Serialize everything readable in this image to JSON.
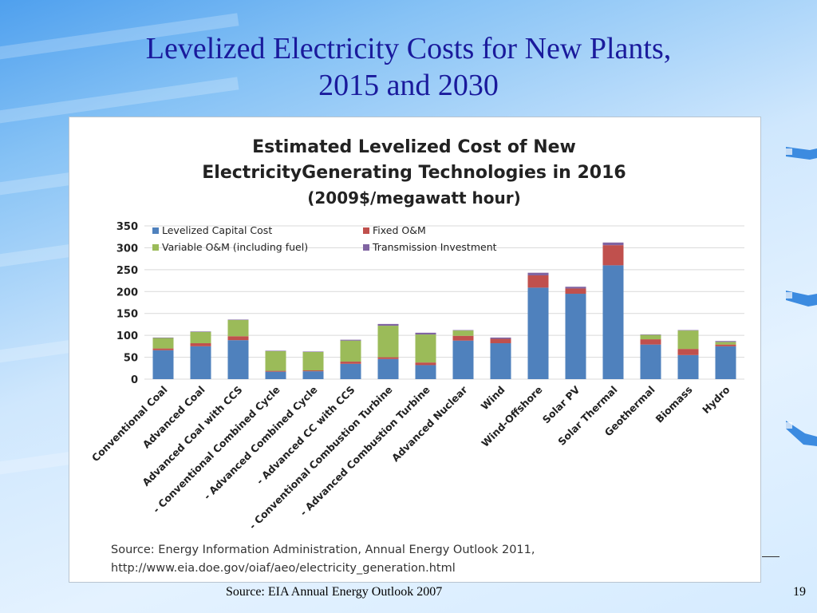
{
  "slide": {
    "title_line1": "Levelized Electricity Costs for New Plants,",
    "title_line2": "2015 and 2030",
    "footer_source": "Source: EIA Annual Energy Outlook 2007",
    "page_number": "19"
  },
  "colors": {
    "capital": "#4f81bd",
    "fixed_om": "#c0504d",
    "variable_om": "#9bbb59",
    "transmission": "#8064a2",
    "title_blue": "#1a1a9c"
  },
  "chart_data": {
    "type": "bar",
    "stacked": true,
    "title_line1": "Estimated Levelized Cost of New",
    "title_line2": "ElectricityGenerating Technologies in 2016",
    "subtitle": "(2009$/megawatt hour)",
    "ylim": [
      0,
      350
    ],
    "yticks": [
      "0",
      "50",
      "100",
      "150",
      "200",
      "250",
      "300",
      "350"
    ],
    "grid": true,
    "legend_position": "top-left",
    "categories": [
      "Conventional Coal",
      "Advanced Coal",
      "Advanced Coal with CCS",
      "- Conventional Combined Cycle",
      "- Advanced Combined Cycle",
      "- Advanced CC with CCS",
      "- Conventional Combustion Turbine",
      "- Advanced Combustion Turbine",
      "Advanced Nuclear",
      "Wind",
      "Wind-Offshore",
      "Solar PV",
      "Solar Thermal",
      "Geothermal",
      "Biomass",
      "Hydro"
    ],
    "series": [
      {
        "name": "Levelized Capital  Cost",
        "values": [
          66,
          75,
          89,
          17,
          18,
          35,
          46,
          32,
          88,
          82,
          209,
          195,
          260,
          79,
          55,
          75
        ]
      },
      {
        "name": "Fixed O&M",
        "values": [
          4,
          7,
          9,
          2,
          2,
          5,
          4,
          6,
          11,
          10,
          28,
          12,
          46,
          12,
          14,
          4
        ]
      },
      {
        "name": "Variable O&M (including fuel)",
        "values": [
          24,
          26,
          37,
          45,
          42,
          48,
          72,
          64,
          12,
          0,
          0,
          0,
          0,
          10,
          42,
          6
        ]
      },
      {
        "name": "Transmission Investment",
        "values": [
          1,
          1,
          1,
          1,
          1,
          2,
          4,
          4,
          1,
          3,
          6,
          4,
          6,
          1,
          1,
          2
        ]
      }
    ],
    "source_line1": "Source: Energy Information Administration, Annual Energy Outlook 2011,",
    "source_line2": "http://www.eia.doe.gov/oiaf/aeo/electricity_generation.html"
  }
}
